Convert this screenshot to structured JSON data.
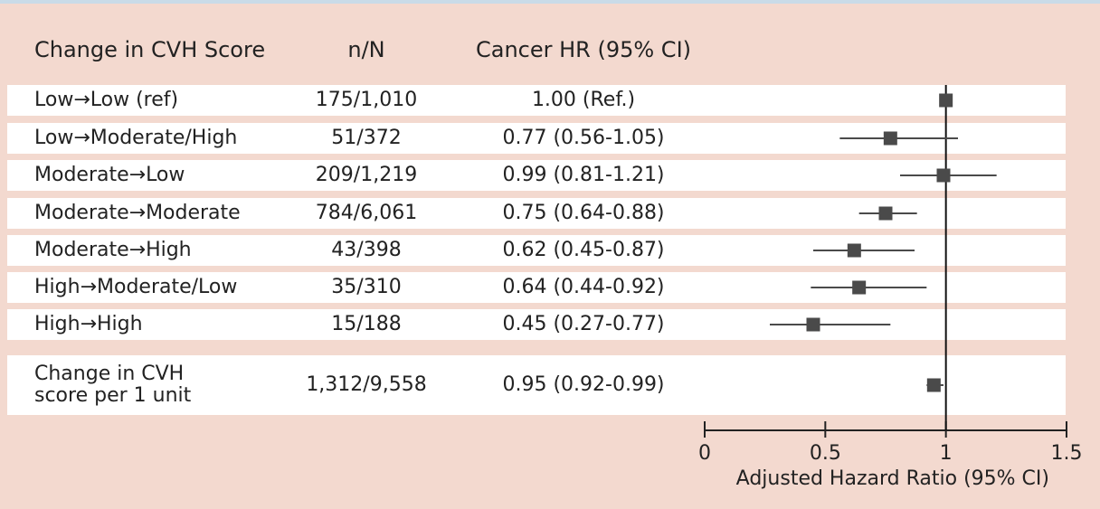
{
  "chart_data": {
    "type": "forest",
    "columns": [
      "Change in CVH Score",
      "n/N",
      "Cancer HR (95% CI)"
    ],
    "categories": [
      "Low→Low (ref)",
      "Low→Moderate/High",
      "Moderate→Low",
      "Moderate→Moderate",
      "Moderate→High",
      "High→Moderate/Low",
      "High→High",
      "Change in CVH score per 1 unit"
    ],
    "counts": [
      "175/1,010",
      "51/372",
      "209/1,219",
      "784/6,061",
      "43/398",
      "35/310",
      "15/188",
      "1,312/9,558"
    ],
    "values": [
      1.0,
      0.77,
      0.99,
      0.75,
      0.62,
      0.64,
      0.45,
      0.95
    ],
    "lower": [
      null,
      0.56,
      0.81,
      0.64,
      0.45,
      0.44,
      0.27,
      0.92
    ],
    "upper": [
      null,
      1.05,
      1.21,
      0.88,
      0.87,
      0.92,
      0.77,
      0.99
    ],
    "value_labels": [
      "1.00 (Ref.)",
      "0.77 (0.56-1.05)",
      "0.99 (0.81-1.21)",
      "0.75 (0.64-0.88)",
      "0.62 (0.45-0.87)",
      "0.64 (0.44-0.92)",
      "0.45 (0.27-0.77)",
      "0.95 (0.92-0.99)"
    ],
    "xlim": [
      0,
      1.5
    ],
    "xticks": [
      0,
      0.5,
      1,
      1.5
    ],
    "ref_line": 1,
    "xlabel": "Adjusted Hazard Ratio (95% CI)",
    "color": "#4a4a4a"
  }
}
